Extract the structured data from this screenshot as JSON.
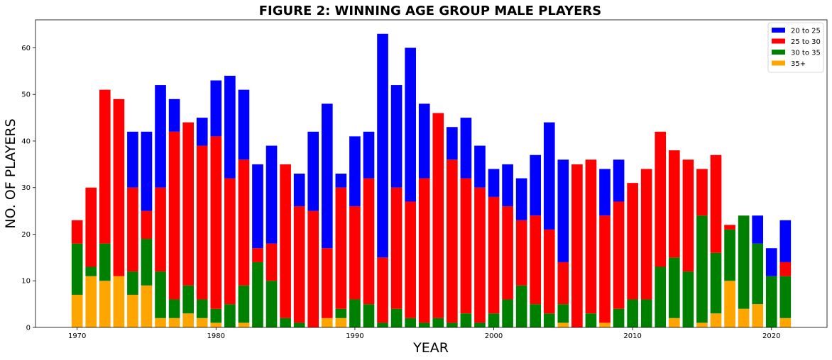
{
  "chart_data": {
    "type": "bar",
    "stacked": true,
    "title": "FIGURE 2: WINNING AGE GROUP MALE PLAYERS",
    "xlabel": "YEAR",
    "ylabel": "NO. OF PLAYERS",
    "xlim": [
      1967,
      2024
    ],
    "ylim": [
      0,
      66
    ],
    "x_ticks": [
      1970,
      1980,
      1990,
      2000,
      2010,
      2020
    ],
    "y_ticks": [
      0,
      10,
      20,
      30,
      40,
      50,
      60
    ],
    "grid": false,
    "legend_position": "top-right",
    "x": [
      1970,
      1971,
      1972,
      1973,
      1974,
      1975,
      1976,
      1977,
      1978,
      1979,
      1980,
      1981,
      1982,
      1983,
      1984,
      1985,
      1986,
      1987,
      1988,
      1989,
      1990,
      1991,
      1992,
      1993,
      1994,
      1995,
      1996,
      1997,
      1998,
      1999,
      2000,
      2001,
      2002,
      2003,
      2004,
      2005,
      2006,
      2007,
      2008,
      2009,
      2010,
      2011,
      2012,
      2013,
      2014,
      2015,
      2016,
      2017,
      2018,
      2019,
      2020,
      2021
    ],
    "series": [
      {
        "name": "35+",
        "color": "#ffa500",
        "values": [
          7,
          11,
          10,
          11,
          7,
          9,
          2,
          2,
          3,
          2,
          1,
          0,
          1,
          0,
          0,
          0,
          0,
          0,
          2,
          2,
          0,
          0,
          0,
          0,
          0,
          0,
          0,
          0,
          0,
          0,
          0,
          0,
          0,
          0,
          0,
          1,
          0,
          0,
          1,
          0,
          0,
          0,
          0,
          2,
          0,
          1,
          3,
          10,
          4,
          5,
          0,
          2
        ]
      },
      {
        "name": "30 to 35",
        "color": "#008000",
        "values": [
          11,
          2,
          8,
          0,
          5,
          10,
          10,
          4,
          6,
          4,
          3,
          5,
          8,
          14,
          10,
          2,
          1,
          0,
          0,
          2,
          6,
          5,
          1,
          4,
          2,
          1,
          2,
          1,
          3,
          1,
          3,
          6,
          9,
          5,
          3,
          4,
          0,
          3,
          0,
          4,
          6,
          6,
          13,
          13,
          12,
          23,
          13,
          11,
          20,
          13,
          11,
          9
        ]
      },
      {
        "name": "25 to 30",
        "color": "#ff0000",
        "values": [
          5,
          17,
          33,
          38,
          18,
          6,
          18,
          36,
          35,
          33,
          37,
          27,
          27,
          3,
          8,
          33,
          25,
          25,
          15,
          26,
          20,
          27,
          14,
          26,
          25,
          31,
          44,
          35,
          29,
          29,
          25,
          20,
          14,
          19,
          18,
          9,
          35,
          33,
          23,
          23,
          25,
          28,
          29,
          23,
          24,
          10,
          21,
          1,
          0,
          0,
          0,
          3
        ]
      },
      {
        "name": "20 to 25",
        "color": "#0000ff",
        "values": [
          0,
          0,
          0,
          0,
          12,
          17,
          22,
          7,
          0,
          6,
          12,
          22,
          15,
          18,
          21,
          0,
          7,
          17,
          31,
          3,
          15,
          10,
          48,
          22,
          33,
          16,
          0,
          7,
          13,
          9,
          6,
          9,
          9,
          13,
          23,
          22,
          0,
          0,
          10,
          9,
          0,
          0,
          0,
          0,
          0,
          0,
          0,
          0,
          0,
          6,
          6,
          9
        ]
      }
    ],
    "legend_order": [
      "20 to 25",
      "25 to 30",
      "30 to 35",
      "35+"
    ]
  }
}
